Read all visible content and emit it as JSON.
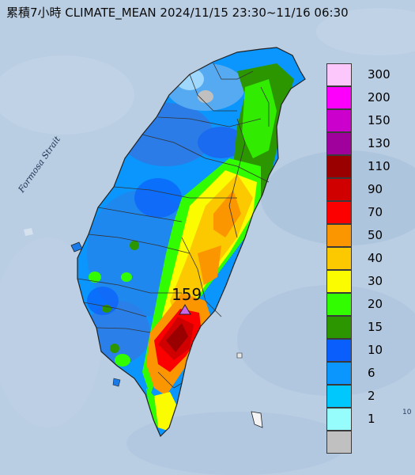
{
  "title": "累積7小時 CLIMATE_MEAN 2024/11/15 23:30~11/16 06:30",
  "sea_label": "Formosa Strait",
  "edge_label": "10",
  "max_station": {
    "value": "159",
    "marker": "triangle-marker-icon",
    "color": "#c868e8"
  },
  "legend": [
    {
      "label": "300",
      "color": "#fcc8fc"
    },
    {
      "label": "200",
      "color": "#fc00fc"
    },
    {
      "label": "150",
      "color": "#cc00cc"
    },
    {
      "label": "130",
      "color": "#a0009c"
    },
    {
      "label": "110",
      "color": "#9a0000"
    },
    {
      "label": "90",
      "color": "#d00000"
    },
    {
      "label": "70",
      "color": "#fc0000"
    },
    {
      "label": "50",
      "color": "#fc9600"
    },
    {
      "label": "40",
      "color": "#fcc800"
    },
    {
      "label": "30",
      "color": "#fcfc00"
    },
    {
      "label": "20",
      "color": "#32fc00"
    },
    {
      "label": "15",
      "color": "#2c9600"
    },
    {
      "label": "10",
      "color": "#0a5ffc"
    },
    {
      "label": "6",
      "color": "#0a96fc"
    },
    {
      "label": "2",
      "color": "#00c8fc"
    },
    {
      "label": "1",
      "color": "#96fcfc"
    },
    {
      "label": "",
      "color": "#c0c0c0"
    }
  ]
}
